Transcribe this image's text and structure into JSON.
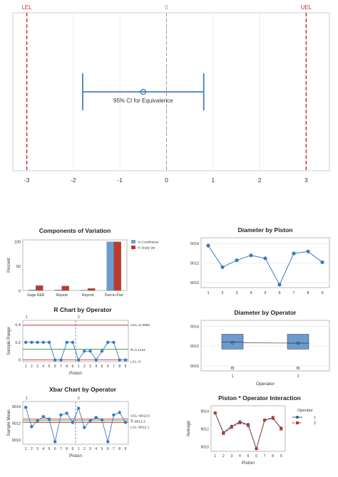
{
  "chart_data": [
    {
      "id": "equivalence",
      "type": "interval",
      "title": "",
      "xlim": [
        -3.3,
        3.5
      ],
      "xticks": [
        -3,
        -2,
        -1,
        0,
        1,
        2,
        3
      ],
      "ref_lines": [
        {
          "label": "LEL",
          "value": -3,
          "color": "#cc3333"
        },
        {
          "label": "0",
          "value": 0,
          "color": "#999999"
        },
        {
          "label": "UEL",
          "value": 3,
          "color": "#cc3333"
        }
      ],
      "interval": {
        "lower": -1.8,
        "upper": 0.8,
        "estimate": -0.5,
        "label": "95% CI for Equivalence",
        "color": "#4a7ebb"
      }
    },
    {
      "id": "components",
      "type": "bar",
      "title": "Components of Variation",
      "ylabel": "Percent",
      "ylim": [
        0,
        100
      ],
      "yticks": [
        0,
        50,
        100
      ],
      "categories": [
        "Gage R&R",
        "Repeat",
        "Reprod",
        "Part-to-Part"
      ],
      "series": [
        {
          "name": "% Contribution",
          "color": "#6c9bd2",
          "values": [
            1,
            1,
            0.5,
            99
          ]
        },
        {
          "name": "% Study Var",
          "color": "#c0392b",
          "values": [
            10,
            9,
            4,
            99
          ]
        }
      ]
    },
    {
      "id": "diameter-piston",
      "type": "line",
      "title": "Diameter by Piston",
      "xlabel": "",
      "ylim": [
        9009.5,
        9014.6
      ],
      "yticks": [
        9010,
        9012,
        9014
      ],
      "x": [
        1,
        2,
        3,
        4,
        5,
        6,
        7,
        8,
        9
      ],
      "values": [
        9013.8,
        9011.6,
        9012.3,
        9012.8,
        9012.5,
        9009.8,
        9013.0,
        9013.2,
        9012.1
      ],
      "color": "#3a7abf"
    },
    {
      "id": "r-chart",
      "type": "line",
      "title": "R Chart by Operator",
      "ylabel": "Sample Range",
      "xlabel": "Piston",
      "ylim": [
        -0.02,
        0.45
      ],
      "yticks": [
        0,
        0.2,
        0.4
      ],
      "operator_labels": [
        "1",
        "2"
      ],
      "x_labels": [
        "1",
        "2",
        "3",
        "4",
        "5",
        "6",
        "7",
        "8",
        "9",
        "1",
        "2",
        "3",
        "4",
        "5",
        "6",
        "7",
        "8",
        "9"
      ],
      "values": [
        0.2,
        0.2,
        0.2,
        0.2,
        0.2,
        0,
        0,
        0.2,
        0.2,
        0,
        0.1,
        0.1,
        0,
        0.1,
        0.2,
        0.2,
        0,
        0
      ],
      "ucl": {
        "value": 0.3953,
        "label": "UCL=0.3953",
        "color": "#cc3333"
      },
      "center": {
        "value": 0.1222,
        "label": "R̄=0.1222",
        "color": "#2a9a3a"
      },
      "lcl": {
        "value": 0,
        "label": "LCL=0",
        "color": "#cc3333"
      },
      "color": "#3a7abf"
    },
    {
      "id": "diameter-operator",
      "type": "box",
      "title": "Diameter by Operator",
      "xlabel": "Operator",
      "ylim": [
        9009.5,
        9014.6
      ],
      "yticks": [
        9010,
        9012,
        9014
      ],
      "categories": [
        "1",
        "2"
      ],
      "boxes": [
        {
          "q1": 9011.7,
          "median": 9012.4,
          "q3": 9013.2,
          "mean": 9012.35,
          "outlier": 9009.8
        },
        {
          "q1": 9011.7,
          "median": 9012.3,
          "q3": 9013.2,
          "mean": 9012.3,
          "outlier": 9009.8
        }
      ],
      "color": "#6c9bd2"
    },
    {
      "id": "xbar-chart",
      "type": "line",
      "title": "Xbar Chart by Operator",
      "ylabel": "Sample Mean",
      "xlabel": "Piston",
      "ylim": [
        9009.5,
        9014.6
      ],
      "yticks": [
        9010,
        9012,
        9014
      ],
      "operator_labels": [
        "1",
        "2"
      ],
      "x_labels": [
        "1",
        "2",
        "3",
        "4",
        "5",
        "6",
        "7",
        "8",
        "9",
        "1",
        "2",
        "3",
        "4",
        "5",
        "6",
        "7",
        "8",
        "9"
      ],
      "values": [
        9013.9,
        9011.6,
        9012.3,
        9012.8,
        9012.5,
        9009.8,
        9013.0,
        9013.2,
        9012.1,
        9013.8,
        9011.5,
        9012.3,
        9012.7,
        9012.4,
        9009.8,
        9013.0,
        9013.3,
        9012.1
      ],
      "ucl": {
        "value": 9012.5,
        "label": "UCL=9012.5",
        "color": "#cc3333"
      },
      "center": {
        "value": 9012.3,
        "label": "X̿=9012.3",
        "color": "#2a9a3a"
      },
      "lcl": {
        "value": 9012.1,
        "label": "LCL=9012.1",
        "color": "#cc3333"
      },
      "color": "#3a7abf"
    },
    {
      "id": "interaction",
      "type": "line",
      "title": "Piston * Operator Interaction",
      "ylabel": "Average",
      "xlabel": "Piston",
      "ylim": [
        9009.5,
        9014.6
      ],
      "yticks": [
        9010,
        9012,
        9014
      ],
      "x": [
        1,
        2,
        3,
        4,
        5,
        6,
        7,
        8,
        9
      ],
      "legend_title": "Operator",
      "series": [
        {
          "name": "1",
          "color": "#2b5d8c",
          "values": [
            9013.8,
            9011.6,
            9012.3,
            9012.8,
            9012.5,
            9009.8,
            9013.0,
            9013.2,
            9012.1
          ]
        },
        {
          "name": "2",
          "color": "#c0392b",
          "values": [
            9013.8,
            9011.5,
            9012.2,
            9012.7,
            9012.4,
            9009.8,
            9013.0,
            9013.3,
            9012.0
          ]
        }
      ]
    }
  ]
}
